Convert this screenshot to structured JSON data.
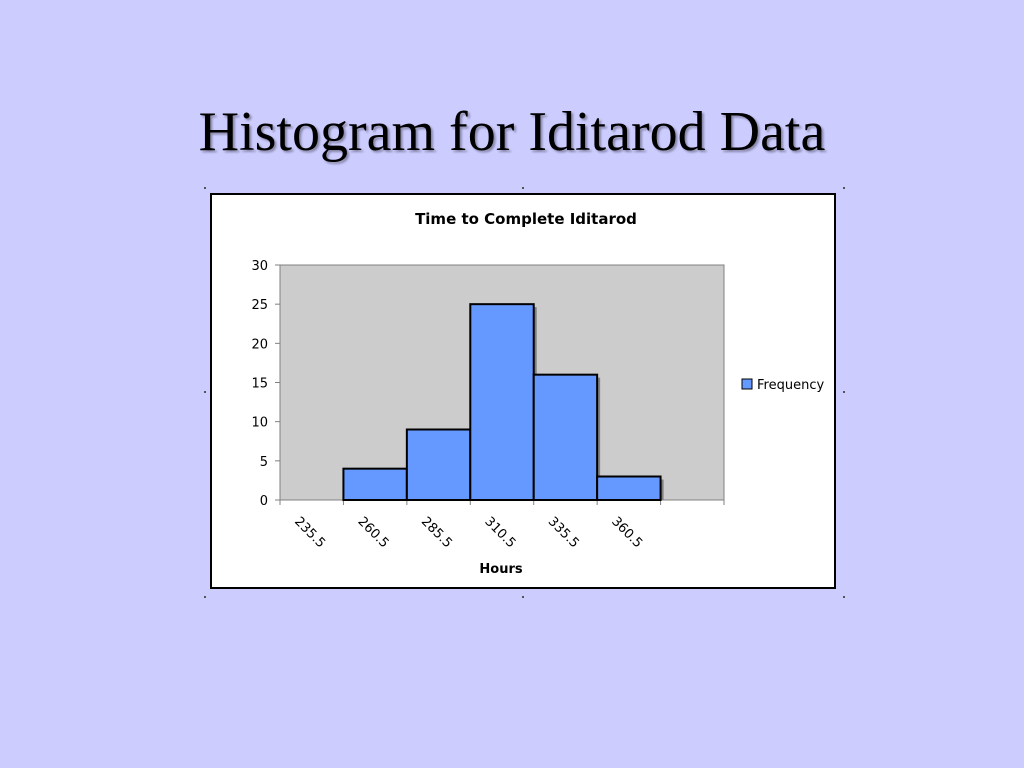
{
  "slide": {
    "title": "Histogram for Iditarod Data",
    "background_color": "#ccccff"
  },
  "chart_data": {
    "type": "bar",
    "title": "Time to Complete Iditarod",
    "xlabel": "Hours",
    "ylabel": "",
    "categories": [
      "235.5",
      "260.5",
      "285.5",
      "310.5",
      "335.5",
      "360.5"
    ],
    "series": [
      {
        "name": "Frequency",
        "values": [
          0,
          4,
          9,
          25,
          16,
          3
        ],
        "color": "#6699ff"
      }
    ],
    "ylim": [
      0,
      30
    ],
    "yticks": [
      0,
      5,
      10,
      15,
      20,
      25,
      30
    ],
    "grid": false,
    "plot_background": "#cccccc",
    "legend_position": "right",
    "bar_gap": 0,
    "shadow": true
  }
}
